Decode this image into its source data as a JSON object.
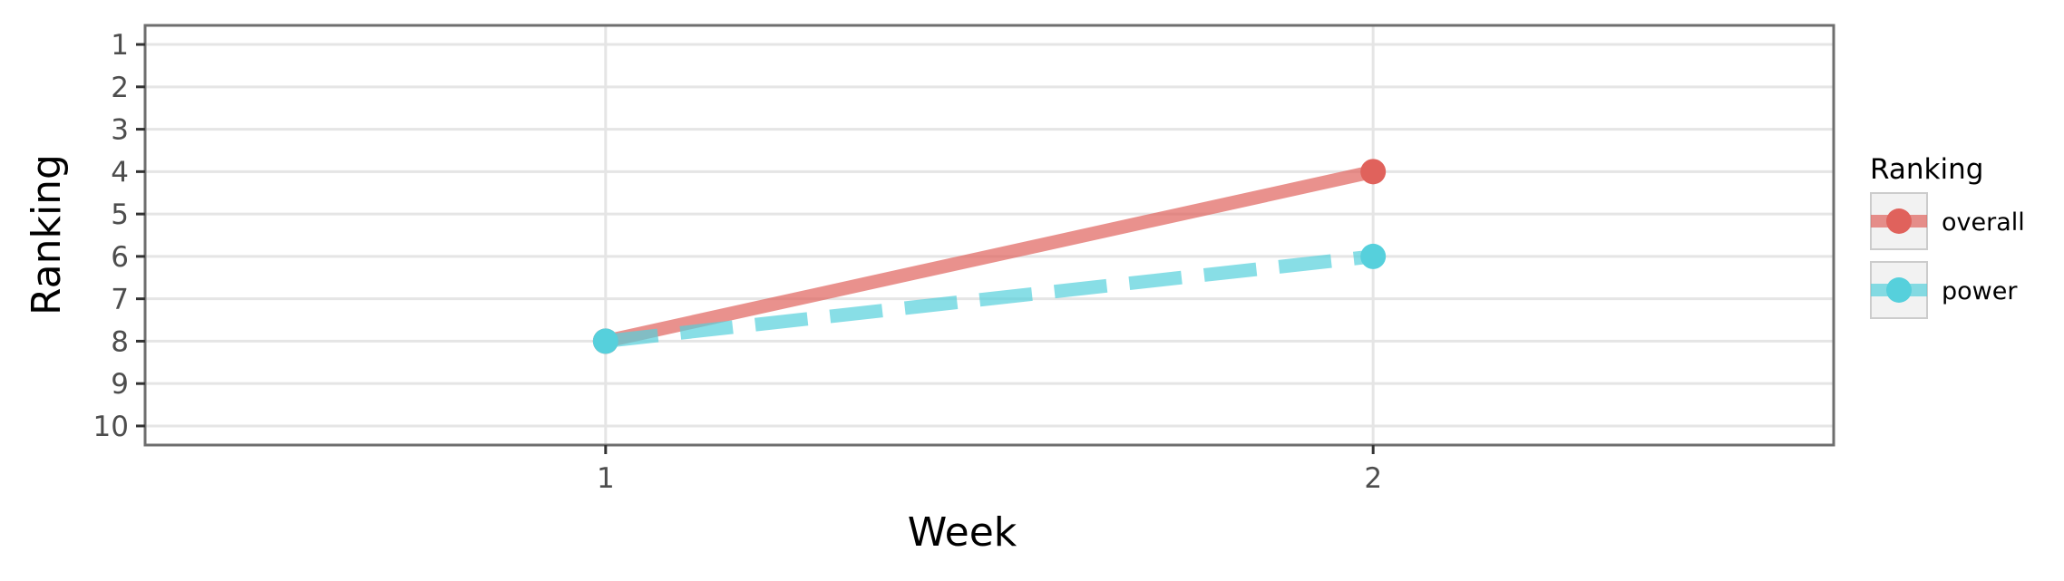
{
  "chart_data": {
    "type": "line",
    "xlabel": "Week",
    "ylabel": "Ranking",
    "x_ticks": [
      "1",
      "2"
    ],
    "x": [
      1,
      2
    ],
    "xlim": [
      0.4,
      2.6
    ],
    "y_ticks": [
      "1",
      "2",
      "3",
      "4",
      "5",
      "6",
      "7",
      "8",
      "9",
      "10"
    ],
    "ylim": [
      0.55,
      10.45
    ],
    "y_reversed": true,
    "grid": true,
    "legend": {
      "title": "Ranking",
      "placement": "right"
    },
    "series": [
      {
        "name": "overall",
        "values": [
          8,
          4
        ],
        "color": "#e0625c",
        "line_style": "solid"
      },
      {
        "name": "power",
        "values": [
          8,
          6
        ],
        "color": "#56d0dc",
        "line_style": "dashed"
      }
    ]
  }
}
